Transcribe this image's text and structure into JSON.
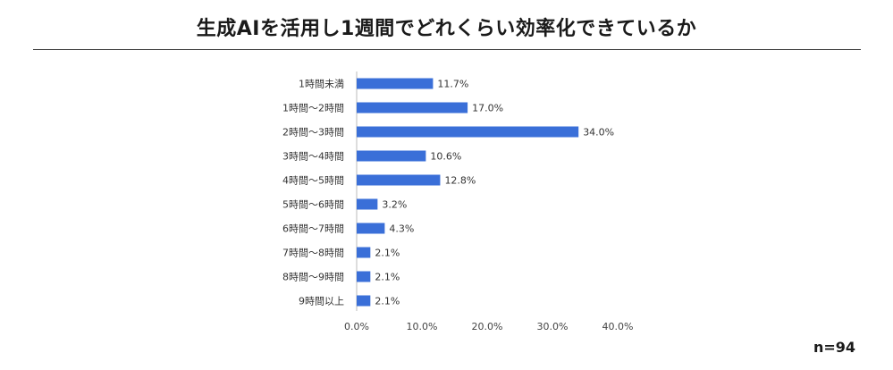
{
  "title": "生成AIを活用し1週間でどれくらい効率化できているか",
  "sample_size": "n=94",
  "colors": {
    "bar": "#3a6fd8",
    "axis": "#bbbbbb"
  },
  "chart_data": {
    "type": "bar",
    "orientation": "horizontal",
    "categories": [
      "1時間未満",
      "1時間〜2時間",
      "2時間〜3時間",
      "3時間〜4時間",
      "4時間〜5時間",
      "5時間〜6時間",
      "6時間〜7時間",
      "7時間〜8時間",
      "8時間〜9時間",
      "9時間以上"
    ],
    "values": [
      11.7,
      17.0,
      34.0,
      10.6,
      12.8,
      3.2,
      4.3,
      2.1,
      2.1,
      2.1
    ],
    "value_labels": [
      "11.7%",
      "17.0%",
      "34.0%",
      "10.6%",
      "12.8%",
      "3.2%",
      "4.3%",
      "2.1%",
      "2.1%",
      "2.1%"
    ],
    "x_ticks": [
      0,
      10,
      20,
      30,
      40
    ],
    "x_tick_labels": [
      "0.0%",
      "10.0%",
      "20.0%",
      "30.0%",
      "40.0%"
    ],
    "xlim": [
      0,
      40
    ],
    "grid": false,
    "legend": "none"
  }
}
